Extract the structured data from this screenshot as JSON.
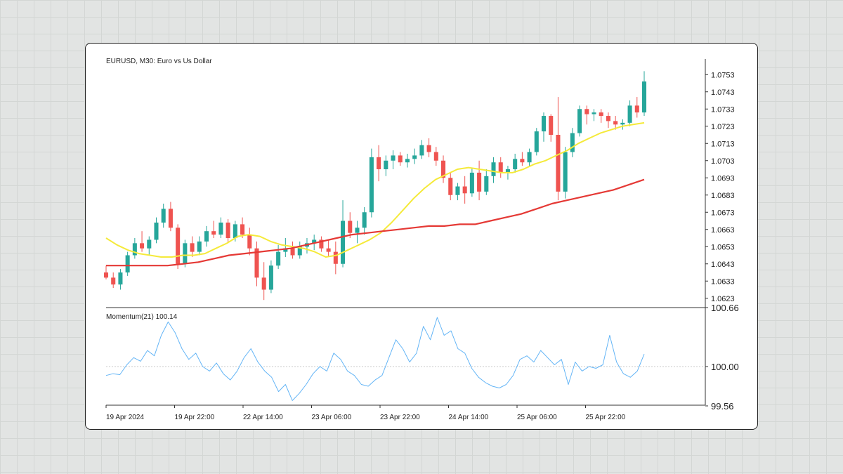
{
  "colors": {
    "background": "#e2e4e3",
    "card": "#ffffff",
    "bull_candle": "#26a69a",
    "bear_candle": "#ef5350",
    "ma_fast": "#f5ea3a",
    "ma_slow": "#e53935",
    "momentum": "#64b5f6"
  },
  "chart_data": [
    {
      "type": "candlestick",
      "title": "EURUSD, M30: Euro vs Us Dollar",
      "xlabel": "",
      "ylabel": "",
      "ylim": [
        1.0618,
        1.0758
      ],
      "y_ticks": [
        "1.0753",
        "1.0743",
        "1.0733",
        "1.0723",
        "1.0713",
        "1.0703",
        "1.0693",
        "1.0683",
        "1.0673",
        "1.0663",
        "1.0653",
        "1.0643",
        "1.0633",
        "1.0623"
      ],
      "x_tick_labels": [
        "19 Apr 2024",
        "19 Apr 22:00",
        "22 Apr 14:00",
        "23 Apr 06:00",
        "23 Apr 22:00",
        "24 Apr 14:00",
        "25 Apr 06:00",
        "25 Apr 22:00"
      ],
      "grid": false,
      "series": [
        {
          "type": "candlestick",
          "values": [
            [
              1.0638,
              1.0642,
              1.0634,
              1.0635
            ],
            [
              1.0635,
              1.0638,
              1.0629,
              1.0631
            ],
            [
              1.0631,
              1.064,
              1.0628,
              1.0638
            ],
            [
              1.0638,
              1.065,
              1.0636,
              1.0648
            ],
            [
              1.0648,
              1.0658,
              1.0646,
              1.0655
            ],
            [
              1.0655,
              1.0662,
              1.065,
              1.0652
            ],
            [
              1.0652,
              1.0659,
              1.0648,
              1.0657
            ],
            [
              1.0657,
              1.067,
              1.0655,
              1.0667
            ],
            [
              1.0667,
              1.0678,
              1.0664,
              1.0675
            ],
            [
              1.0675,
              1.0679,
              1.0662,
              1.0664
            ],
            [
              1.0664,
              1.0666,
              1.064,
              1.0643
            ],
            [
              1.0643,
              1.0657,
              1.0641,
              1.0655
            ],
            [
              1.0655,
              1.0659,
              1.0647,
              1.065
            ],
            [
              1.065,
              1.0659,
              1.0648,
              1.0656
            ],
            [
              1.0656,
              1.0665,
              1.0653,
              1.0662
            ],
            [
              1.0662,
              1.0668,
              1.0658,
              1.066
            ],
            [
              1.066,
              1.067,
              1.0658,
              1.0667
            ],
            [
              1.0667,
              1.0669,
              1.0655,
              1.0658
            ],
            [
              1.0658,
              1.0668,
              1.0656,
              1.0666
            ],
            [
              1.0666,
              1.067,
              1.0658,
              1.066
            ],
            [
              1.066,
              1.0664,
              1.0648,
              1.0652
            ],
            [
              1.0652,
              1.0656,
              1.063,
              1.0635
            ],
            [
              1.0635,
              1.0644,
              1.0622,
              1.0628
            ],
            [
              1.0628,
              1.0645,
              1.0626,
              1.0642
            ],
            [
              1.0642,
              1.0654,
              1.064,
              1.065
            ],
            [
              1.065,
              1.0658,
              1.0647,
              1.0652
            ],
            [
              1.0652,
              1.0656,
              1.0646,
              1.0648
            ],
            [
              1.0648,
              1.0656,
              1.0646,
              1.0653
            ],
            [
              1.0653,
              1.0658,
              1.0649,
              1.0655
            ],
            [
              1.0655,
              1.066,
              1.0651,
              1.0657
            ],
            [
              1.0657,
              1.0659,
              1.065,
              1.0652
            ],
            [
              1.0652,
              1.0657,
              1.0647,
              1.065
            ],
            [
              1.065,
              1.0656,
              1.0637,
              1.0643
            ],
            [
              1.0643,
              1.068,
              1.0641,
              1.0668
            ],
            [
              1.0668,
              1.0673,
              1.0658,
              1.0661
            ],
            [
              1.0661,
              1.0668,
              1.0655,
              1.0664
            ],
            [
              1.0664,
              1.0676,
              1.066,
              1.0673
            ],
            [
              1.0673,
              1.071,
              1.067,
              1.0705
            ],
            [
              1.0705,
              1.0712,
              1.0691,
              1.0698
            ],
            [
              1.0698,
              1.0706,
              1.0694,
              1.0703
            ],
            [
              1.0703,
              1.0709,
              1.0698,
              1.0706
            ],
            [
              1.0706,
              1.0708,
              1.07,
              1.0702
            ],
            [
              1.0702,
              1.0707,
              1.0699,
              1.0704
            ],
            [
              1.0704,
              1.071,
              1.0701,
              1.0706
            ],
            [
              1.0706,
              1.0715,
              1.0704,
              1.0712
            ],
            [
              1.0712,
              1.0716,
              1.0705,
              1.0708
            ],
            [
              1.0708,
              1.0711,
              1.07,
              1.0703
            ],
            [
              1.0703,
              1.0706,
              1.069,
              1.0693
            ],
            [
              1.0693,
              1.0696,
              1.068,
              1.0683
            ],
            [
              1.0683,
              1.069,
              1.068,
              1.0688
            ],
            [
              1.0688,
              1.0694,
              1.0678,
              1.0684
            ],
            [
              1.0684,
              1.0699,
              1.0682,
              1.0696
            ],
            [
              1.0696,
              1.0703,
              1.068,
              1.0685
            ],
            [
              1.0685,
              1.0698,
              1.0683,
              1.0694
            ],
            [
              1.0694,
              1.0705,
              1.069,
              1.0702
            ],
            [
              1.0702,
              1.0705,
              1.0693,
              1.0696
            ],
            [
              1.0696,
              1.07,
              1.0692,
              1.0698
            ],
            [
              1.0698,
              1.0707,
              1.0696,
              1.0704
            ],
            [
              1.0704,
              1.0708,
              1.07,
              1.0702
            ],
            [
              1.0702,
              1.071,
              1.07,
              1.0708
            ],
            [
              1.0708,
              1.0722,
              1.0706,
              1.072
            ],
            [
              1.072,
              1.0731,
              1.0714,
              1.0729
            ],
            [
              1.0729,
              1.073,
              1.0714,
              1.0718
            ],
            [
              1.0718,
              1.074,
              1.068,
              1.0685
            ],
            [
              1.0685,
              1.0711,
              1.0681,
              1.0708
            ],
            [
              1.0708,
              1.0722,
              1.0705,
              1.0719
            ],
            [
              1.0719,
              1.0735,
              1.0717,
              1.0733
            ],
            [
              1.0733,
              1.0735,
              1.0724,
              1.073
            ],
            [
              1.073,
              1.0733,
              1.0726,
              1.0731
            ],
            [
              1.0731,
              1.0733,
              1.0725,
              1.0729
            ],
            [
              1.0729,
              1.0731,
              1.0722,
              1.0726
            ],
            [
              1.0726,
              1.0729,
              1.0721,
              1.0724
            ],
            [
              1.0724,
              1.0727,
              1.0721,
              1.0725
            ],
            [
              1.0725,
              1.0738,
              1.0723,
              1.0735
            ],
            [
              1.0735,
              1.074,
              1.0728,
              1.0731
            ],
            [
              1.0731,
              1.0755,
              1.0729,
              1.0749
            ]
          ]
        },
        {
          "type": "line",
          "values": [
            1.0658,
            1.0654,
            1.0651,
            1.0649,
            1.0648,
            1.0647,
            1.0647,
            1.0648,
            1.0648,
            1.0649,
            1.0652,
            1.0655,
            1.0659,
            1.066,
            1.0659,
            1.0656,
            1.0654,
            1.0653,
            1.0652,
            1.065,
            1.0647,
            1.0648,
            1.0651,
            1.0654,
            1.0657,
            1.0661,
            1.0667,
            1.0674,
            1.0681,
            1.0687,
            1.0692,
            1.0695,
            1.0698,
            1.0699,
            1.0698,
            1.0697,
            1.0696,
            1.0696,
            1.0698,
            1.0701,
            1.0703,
            1.0706,
            1.0709,
            1.0713,
            1.0716,
            1.0719,
            1.0721,
            1.0723,
            1.0724,
            1.0725
          ]
        },
        {
          "type": "line",
          "values": [
            1.0642,
            1.0642,
            1.0642,
            1.0642,
            1.0642,
            1.0643,
            1.0644,
            1.0646,
            1.0648,
            1.0649,
            1.065,
            1.0651,
            1.0652,
            1.0654,
            1.0656,
            1.0658,
            1.066,
            1.0661,
            1.0662,
            1.0663,
            1.0664,
            1.0665,
            1.0665,
            1.0666,
            1.0666,
            1.0668,
            1.067,
            1.0672,
            1.0675,
            1.0678,
            1.068,
            1.0682,
            1.0684,
            1.0686,
            1.0689,
            1.0692
          ]
        }
      ]
    },
    {
      "type": "line",
      "title": "Momentum(21) 100.14",
      "xlabel": "",
      "ylabel": "",
      "ylim": [
        99.56,
        100.66
      ],
      "y_ticks": [
        "100.66",
        "100.00",
        "99.56"
      ],
      "reference_line": 100.0,
      "series": [
        {
          "values": [
            99.9,
            99.92,
            99.91,
            100.02,
            100.1,
            100.06,
            100.18,
            100.12,
            100.35,
            100.5,
            100.38,
            100.2,
            100.08,
            100.15,
            100.0,
            99.95,
            100.04,
            99.92,
            99.85,
            99.95,
            100.1,
            100.2,
            100.05,
            99.95,
            99.88,
            99.72,
            99.8,
            99.62,
            99.7,
            99.8,
            99.92,
            100.0,
            99.95,
            100.15,
            100.08,
            99.95,
            99.9,
            99.8,
            99.78,
            99.85,
            99.9,
            100.1,
            100.3,
            100.2,
            100.05,
            100.15,
            100.45,
            100.3,
            100.55,
            100.35,
            100.4,
            100.2,
            100.15,
            99.98,
            99.88,
            99.82,
            99.78,
            99.76,
            99.8,
            99.9,
            100.08,
            100.12,
            100.05,
            100.18,
            100.1,
            100.02,
            100.08,
            99.8,
            100.05,
            99.95,
            100.0,
            99.98,
            100.02,
            100.35,
            100.05,
            99.92,
            99.88,
            99.95,
            100.14
          ]
        }
      ]
    }
  ]
}
